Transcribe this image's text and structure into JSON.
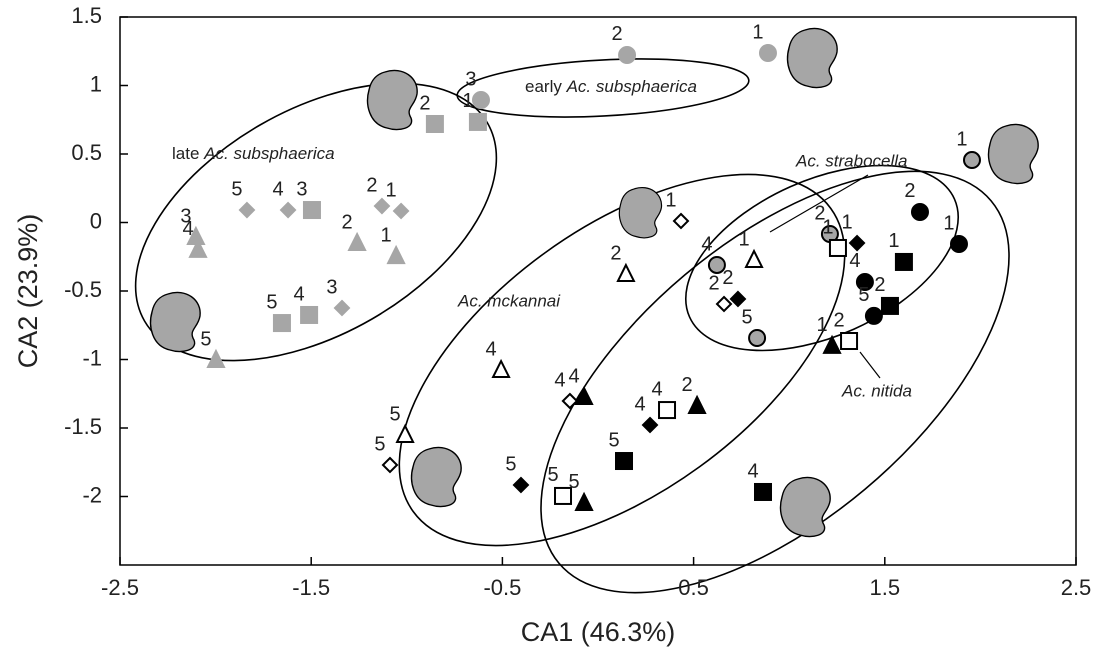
{
  "chart_data": {
    "type": "scatter",
    "x_label": "CA1 (46.3%)",
    "y_label": "CA2 (23.9%)",
    "xlim": [
      -2.5,
      2.5
    ],
    "ylim": [
      -2.5,
      1.5
    ],
    "xticks": [
      -2.5,
      -1.5,
      -0.5,
      0.5,
      1.5,
      2.5
    ],
    "yticks": [
      1.5,
      1,
      0.5,
      0,
      -0.5,
      -1,
      -1.5,
      -2
    ],
    "annotations": [
      {
        "prefix": "early",
        "italic": "Ac. subsphaerica"
      },
      {
        "prefix": "late",
        "italic": "Ac. subsphaerica"
      },
      {
        "italic": "Ac. strabocella"
      },
      {
        "italic": "Ac. mckannai"
      },
      {
        "italic": "Ac. nitida"
      }
    ],
    "series": [
      {
        "marker": "circle",
        "fill": "#a6a6a6",
        "stroke": "#a6a6a6",
        "x": [
          0.152,
          0.889,
          -0.612
        ],
        "values": [
          1.223,
          1.237,
          0.894
        ],
        "labels": [
          "2",
          "1",
          "3"
        ]
      },
      {
        "marker": "square",
        "fill": "#a6a6a6",
        "stroke": "#a6a6a6",
        "x": [
          -0.853,
          -0.628,
          -1.496,
          -1.653,
          -1.511
        ],
        "values": [
          0.719,
          0.734,
          0.091,
          -0.734,
          -0.675
        ],
        "labels": [
          "2",
          "1",
          "3",
          "5",
          "4"
        ]
      },
      {
        "marker": "diamond",
        "fill": "#a6a6a6",
        "stroke": "#a6a6a6",
        "x": [
          -1.836,
          -1.621,
          -1.13,
          -1.03,
          -1.339
        ],
        "values": [
          0.091,
          0.091,
          0.12,
          0.084,
          -0.624
        ],
        "labels": [
          "5",
          "4",
          "2",
          "1",
          "3"
        ]
      },
      {
        "marker": "triangle",
        "fill": "#a6a6a6",
        "stroke": "#a6a6a6",
        "x": [
          -2.103,
          -2.092,
          -1.26,
          -1.056,
          -1.998
        ],
        "values": [
          -0.106,
          -0.2,
          -0.15,
          -0.245,
          -1.004
        ],
        "labels": [
          "3",
          "4",
          "2",
          "1",
          "5"
        ]
      },
      {
        "marker": "circle",
        "fill": "#a6a6a6",
        "stroke": "#000000",
        "x": [
          1.956,
          1.213,
          0.622,
          0.832
        ],
        "values": [
          0.456,
          -0.084,
          -0.31,
          -0.843
        ],
        "labels": [
          "1",
          "2",
          "4",
          "5"
        ]
      },
      {
        "marker": "circle",
        "fill": "#000000",
        "stroke": "#000000",
        "x": [
          1.684,
          1.888,
          1.396,
          1.443
        ],
        "values": [
          0.077,
          -0.157,
          -0.434,
          -0.682
        ],
        "labels": [
          "2",
          "1",
          "4",
          "5"
        ]
      },
      {
        "marker": "square",
        "fill": "#000000",
        "stroke": "#000000",
        "x": [
          1.6,
          1.527,
          0.136,
          0.863
        ],
        "values": [
          -0.288,
          -0.609,
          -1.741,
          -1.967
        ],
        "labels": [
          "1",
          "2",
          "5",
          "4"
        ]
      },
      {
        "marker": "square",
        "fill": "#ffffff",
        "stroke": "#000000",
        "x": [
          1.255,
          1.313,
          0.361,
          -0.183
        ],
        "values": [
          -0.186,
          -0.865,
          -1.369,
          -1.996
        ],
        "labels": [
          "1",
          "2",
          "4",
          "5"
        ]
      },
      {
        "marker": "diamond",
        "fill": "#000000",
        "stroke": "#000000",
        "x": [
          1.355,
          0.732,
          0.272,
          -0.403
        ],
        "values": [
          -0.15,
          -0.558,
          -1.478,
          -1.916
        ],
        "labels": [
          "1",
          "2",
          "4",
          "5"
        ]
      },
      {
        "marker": "diamond",
        "fill": "#ffffff",
        "stroke": "#000000",
        "x": [
          0.434,
          0.659,
          -0.147,
          -1.088
        ],
        "values": [
          0.011,
          -0.595,
          -1.303,
          -1.77
        ],
        "labels": [
          "1",
          "2",
          "4",
          "5"
        ]
      },
      {
        "marker": "triangle",
        "fill": "#ffffff",
        "stroke": "#000000",
        "x": [
          0.816,
          0.146,
          -0.507,
          -1.009
        ],
        "values": [
          -0.274,
          -0.376,
          -1.077,
          -1.551
        ],
        "labels": [
          "1",
          "2",
          "4",
          "5"
        ]
      },
      {
        "marker": "triangle",
        "fill": "#000000",
        "stroke": "#000000",
        "x": [
          1.224,
          0.518,
          -0.073,
          -0.073
        ],
        "values": [
          -0.901,
          -1.339,
          -1.274,
          -2.047
        ],
        "labels": [
          "1",
          "2",
          "4",
          "5"
        ]
      }
    ]
  }
}
